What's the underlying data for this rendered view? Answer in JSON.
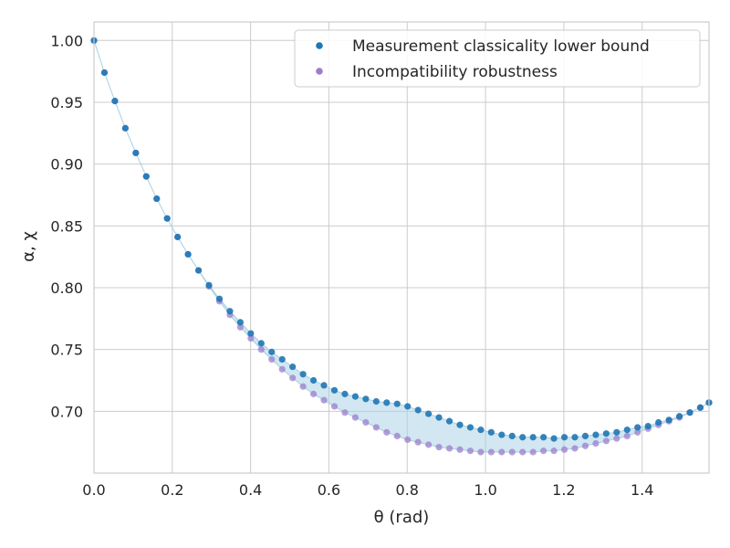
{
  "chart_data": {
    "type": "scatter",
    "xlabel": "θ (rad)",
    "ylabel": "α, χ",
    "xlim": [
      0.0,
      1.5708
    ],
    "ylim": [
      0.65,
      1.015
    ],
    "grid": true,
    "legend_position": "top-right",
    "x_ticks": [
      "0.0",
      "0.2",
      "0.4",
      "0.6",
      "0.8",
      "1.0",
      "1.2",
      "1.4"
    ],
    "y_ticks": [
      "0.70",
      "0.75",
      "0.80",
      "0.85",
      "0.90",
      "0.95",
      "1.00"
    ],
    "x_tick_values": [
      0.0,
      0.2,
      0.4,
      0.6,
      0.8,
      1.0,
      1.2,
      1.4
    ],
    "y_tick_values": [
      0.7,
      0.75,
      0.8,
      0.85,
      0.9,
      0.95,
      1.0
    ],
    "x": [
      0.0,
      0.0267,
      0.0534,
      0.0801,
      0.1068,
      0.1335,
      0.1602,
      0.1869,
      0.2136,
      0.2403,
      0.267,
      0.2937,
      0.3204,
      0.3471,
      0.3738,
      0.4005,
      0.4272,
      0.4539,
      0.4806,
      0.5073,
      0.534,
      0.5607,
      0.5874,
      0.6141,
      0.6408,
      0.6675,
      0.6942,
      0.7209,
      0.7476,
      0.7743,
      0.801,
      0.8277,
      0.8544,
      0.8811,
      0.9078,
      0.9345,
      0.9612,
      0.9879,
      1.0146,
      1.0413,
      1.068,
      1.0947,
      1.1214,
      1.1481,
      1.1748,
      1.2015,
      1.2282,
      1.2549,
      1.2816,
      1.3083,
      1.335,
      1.3617,
      1.3884,
      1.4151,
      1.4418,
      1.4685,
      1.4952,
      1.5219,
      1.5486,
      1.5708
    ],
    "series": [
      {
        "name": "Measurement classicality lower bound",
        "color": "#1f77b4",
        "values": [
          1.0,
          0.974,
          0.951,
          0.929,
          0.909,
          0.89,
          0.872,
          0.856,
          0.841,
          0.827,
          0.814,
          0.802,
          0.791,
          0.781,
          0.772,
          0.763,
          0.755,
          0.748,
          0.742,
          0.736,
          0.73,
          0.725,
          0.721,
          0.717,
          0.714,
          0.712,
          0.71,
          0.708,
          0.707,
          0.706,
          0.704,
          0.701,
          0.698,
          0.695,
          0.692,
          0.689,
          0.687,
          0.685,
          0.683,
          0.681,
          0.68,
          0.679,
          0.679,
          0.679,
          0.678,
          0.679,
          0.679,
          0.68,
          0.681,
          0.682,
          0.683,
          0.685,
          0.687,
          0.688,
          0.691,
          0.693,
          0.696,
          0.699,
          0.703,
          0.707
        ]
      },
      {
        "name": "Incompatibility robustness",
        "color": "#9b7fcc",
        "values": [
          1.0,
          0.974,
          0.951,
          0.929,
          0.909,
          0.89,
          0.872,
          0.856,
          0.841,
          0.827,
          0.814,
          0.801,
          0.789,
          0.778,
          0.768,
          0.759,
          0.75,
          0.742,
          0.734,
          0.727,
          0.72,
          0.714,
          0.709,
          0.704,
          0.699,
          0.695,
          0.691,
          0.687,
          0.683,
          0.68,
          0.677,
          0.675,
          0.673,
          0.671,
          0.67,
          0.669,
          0.668,
          0.667,
          0.667,
          0.667,
          0.667,
          0.667,
          0.667,
          0.668,
          0.668,
          0.669,
          0.67,
          0.672,
          0.674,
          0.676,
          0.678,
          0.68,
          0.683,
          0.686,
          0.689,
          0.692,
          0.695,
          0.699,
          0.703,
          0.707
        ]
      }
    ]
  }
}
